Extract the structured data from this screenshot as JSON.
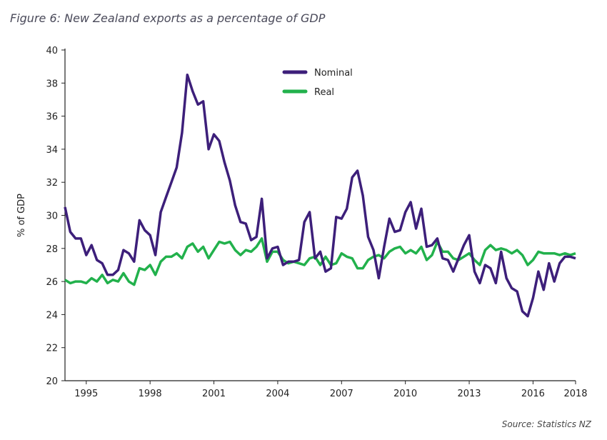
{
  "title": "Figure 6: New Zealand exports as a percentage of GDP",
  "source": "Source: Statistics NZ",
  "chart_data": {
    "type": "line",
    "title": "Figure 6: New Zealand exports as a percentage of GDP",
    "xlabel": "",
    "ylabel": "% of GDP",
    "ylim": [
      20,
      40
    ],
    "yticks": [
      20,
      22,
      24,
      26,
      28,
      30,
      32,
      34,
      36,
      38,
      40
    ],
    "xticks": [
      "1995",
      "1998",
      "2001",
      "2004",
      "2007",
      "2010",
      "2013",
      "2016",
      "2018"
    ],
    "xtick_years": [
      1995,
      1998,
      2001,
      2004,
      2007,
      2010,
      2013,
      2016,
      2018
    ],
    "xlim": [
      1994,
      2018
    ],
    "start": "1994 Q1",
    "frequency": "quarterly",
    "grid": false,
    "legend_position": "top-center",
    "series": [
      {
        "name": "Nominal",
        "color": "#3d1f7a",
        "values": [
          30.5,
          29.0,
          28.6,
          28.6,
          27.6,
          28.2,
          27.3,
          27.1,
          26.4,
          26.4,
          26.7,
          27.9,
          27.7,
          27.2,
          29.7,
          29.1,
          28.8,
          27.6,
          30.2,
          31.1,
          32.0,
          32.9,
          35.0,
          38.5,
          37.5,
          36.7,
          36.9,
          34.0,
          34.9,
          34.5,
          33.2,
          32.1,
          30.6,
          29.6,
          29.5,
          28.5,
          28.7,
          31.0,
          27.4,
          28.0,
          28.1,
          27.0,
          27.2,
          27.2,
          27.3,
          29.6,
          30.2,
          27.4,
          27.8,
          26.6,
          26.8,
          29.9,
          29.8,
          30.4,
          32.3,
          32.7,
          31.2,
          28.7,
          27.9,
          26.2,
          28.1,
          29.8,
          29.0,
          29.1,
          30.2,
          30.8,
          29.2,
          30.4,
          28.1,
          28.2,
          28.6,
          27.4,
          27.3,
          26.6,
          27.4,
          28.2,
          28.8,
          26.6,
          25.9,
          27.0,
          26.8,
          25.9,
          27.8,
          26.2,
          25.6,
          25.4,
          24.2,
          23.9,
          25.0,
          26.6,
          25.5,
          27.1,
          26.0,
          27.1,
          27.5,
          27.5,
          27.4
        ]
      },
      {
        "name": "Real",
        "color": "#22b14c",
        "values": [
          26.1,
          25.9,
          26.0,
          26.0,
          25.9,
          26.2,
          26.0,
          26.4,
          25.9,
          26.1,
          26.0,
          26.5,
          26.0,
          25.8,
          26.8,
          26.7,
          27.0,
          26.4,
          27.2,
          27.5,
          27.5,
          27.7,
          27.4,
          28.1,
          28.3,
          27.8,
          28.1,
          27.4,
          27.9,
          28.4,
          28.3,
          28.4,
          27.9,
          27.6,
          27.9,
          27.8,
          28.1,
          28.6,
          27.2,
          27.8,
          27.8,
          27.3,
          27.1,
          27.2,
          27.1,
          27.0,
          27.4,
          27.5,
          27.0,
          27.5,
          27.0,
          27.1,
          27.7,
          27.5,
          27.4,
          26.8,
          26.8,
          27.3,
          27.5,
          27.6,
          27.4,
          27.8,
          28.0,
          28.1,
          27.7,
          27.9,
          27.7,
          28.1,
          27.3,
          27.6,
          28.4,
          27.8,
          27.8,
          27.4,
          27.3,
          27.5,
          27.7,
          27.3,
          27.0,
          27.9,
          28.2,
          27.9,
          28.0,
          27.9,
          27.7,
          27.9,
          27.6,
          27.0,
          27.3,
          27.8,
          27.7,
          27.7,
          27.7,
          27.6,
          27.7,
          27.6,
          27.7
        ]
      }
    ]
  }
}
